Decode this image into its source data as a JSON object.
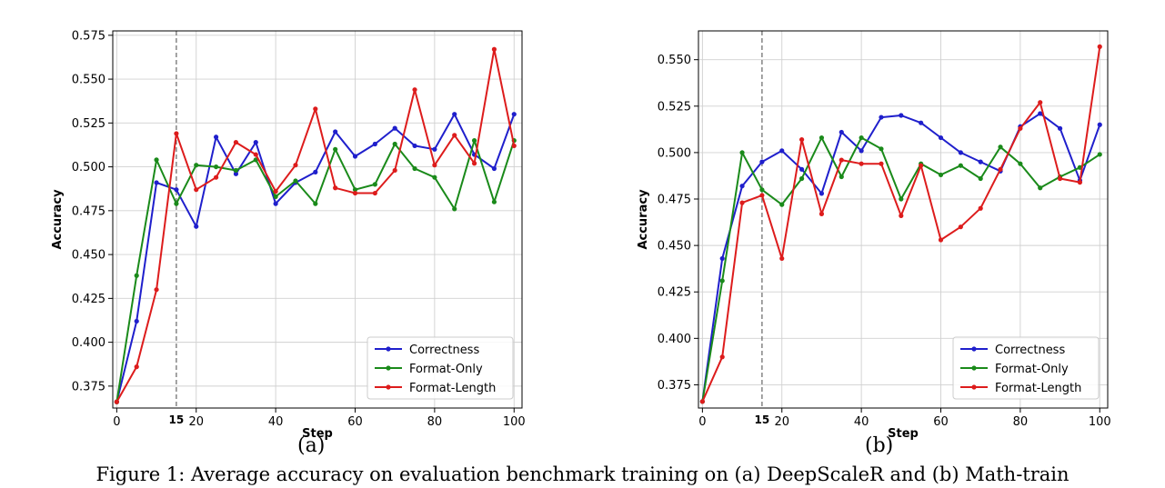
{
  "figure": {
    "caption": "Figure 1: Average accuracy on evaluation benchmark training on (a) DeepScaleR and (b) Math-train"
  },
  "chart_data": [
    {
      "type": "line",
      "panel_label": "(a)",
      "xlabel": "Step",
      "ylabel": "Accuracy",
      "xlim": [
        -1,
        102
      ],
      "ylim": [
        0.3625,
        0.5775
      ],
      "xticks": [
        0,
        20,
        40,
        60,
        80,
        100
      ],
      "yticks": [
        0.375,
        0.4,
        0.425,
        0.45,
        0.475,
        0.5,
        0.525,
        0.55,
        0.575
      ],
      "ytick_labels": [
        "0.375",
        "0.400",
        "0.425",
        "0.450",
        "0.475",
        "0.500",
        "0.525",
        "0.550",
        "0.575"
      ],
      "marker_line": {
        "x": 15,
        "label": "15"
      },
      "grid": true,
      "legend_position": "lower-right",
      "x": [
        0,
        5,
        10,
        15,
        20,
        25,
        30,
        35,
        40,
        45,
        50,
        55,
        60,
        65,
        70,
        75,
        80,
        85,
        90,
        95,
        100
      ],
      "series": [
        {
          "name": "Correctness",
          "color": "#1f1fcc",
          "values": [
            0.366,
            0.412,
            0.491,
            0.487,
            0.466,
            0.517,
            0.496,
            0.514,
            0.479,
            0.491,
            0.497,
            0.52,
            0.506,
            0.513,
            0.522,
            0.512,
            0.51,
            0.53,
            0.507,
            0.499,
            0.53
          ]
        },
        {
          "name": "Format-Only",
          "color": "#1a8a1a",
          "values": [
            0.366,
            0.438,
            0.504,
            0.479,
            0.501,
            0.5,
            0.498,
            0.504,
            0.483,
            0.492,
            0.479,
            0.51,
            0.487,
            0.49,
            0.513,
            0.499,
            0.494,
            0.476,
            0.515,
            0.48,
            0.515
          ]
        },
        {
          "name": "Format-Length",
          "color": "#dd1c1c",
          "values": [
            0.366,
            0.386,
            0.43,
            0.519,
            0.487,
            0.494,
            0.514,
            0.507,
            0.486,
            0.501,
            0.533,
            0.488,
            0.485,
            0.485,
            0.498,
            0.544,
            0.501,
            0.518,
            0.502,
            0.567,
            0.512
          ]
        }
      ]
    },
    {
      "type": "line",
      "panel_label": "(b)",
      "xlabel": "Step",
      "ylabel": "Accuracy",
      "xlim": [
        -1,
        102
      ],
      "ylim": [
        0.3625,
        0.5655
      ],
      "xticks": [
        0,
        20,
        40,
        60,
        80,
        100
      ],
      "yticks": [
        0.375,
        0.4,
        0.425,
        0.45,
        0.475,
        0.5,
        0.525,
        0.55
      ],
      "ytick_labels": [
        "0.375",
        "0.400",
        "0.425",
        "0.450",
        "0.475",
        "0.500",
        "0.525",
        "0.550"
      ],
      "marker_line": {
        "x": 15,
        "label": "15"
      },
      "grid": true,
      "legend_position": "lower-right",
      "x": [
        0,
        5,
        10,
        15,
        20,
        25,
        30,
        35,
        40,
        45,
        50,
        55,
        60,
        65,
        70,
        75,
        80,
        85,
        90,
        95,
        100
      ],
      "series": [
        {
          "name": "Correctness",
          "color": "#1f1fcc",
          "values": [
            0.366,
            0.443,
            0.482,
            0.495,
            0.501,
            0.491,
            0.478,
            0.511,
            0.501,
            0.519,
            0.52,
            0.516,
            0.508,
            0.5,
            0.495,
            0.49,
            0.514,
            0.521,
            0.513,
            0.485,
            0.515
          ]
        },
        {
          "name": "Format-Only",
          "color": "#1a8a1a",
          "values": [
            0.366,
            0.431,
            0.5,
            0.48,
            0.472,
            0.486,
            0.508,
            0.487,
            0.508,
            0.502,
            0.475,
            0.494,
            0.488,
            0.493,
            0.486,
            0.503,
            0.494,
            0.481,
            0.487,
            0.492,
            0.499
          ]
        },
        {
          "name": "Format-Length",
          "color": "#dd1c1c",
          "values": [
            0.366,
            0.39,
            0.473,
            0.477,
            0.443,
            0.507,
            0.467,
            0.496,
            0.494,
            0.494,
            0.466,
            0.493,
            0.453,
            0.46,
            0.47,
            0.491,
            0.513,
            0.527,
            0.486,
            0.484,
            0.557
          ]
        }
      ]
    }
  ]
}
